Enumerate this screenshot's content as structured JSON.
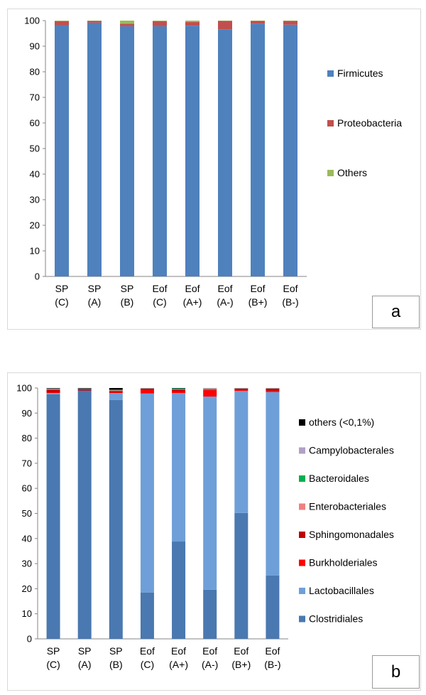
{
  "chart_data": [
    {
      "type": "bar",
      "stacked": true,
      "panel_label": "a",
      "categories": [
        [
          "SP",
          "(C)"
        ],
        [
          "SP",
          "(A)"
        ],
        [
          "SP",
          "(B)"
        ],
        [
          "Eof",
          "(C)"
        ],
        [
          "Eof",
          "(A+)"
        ],
        [
          "Eof",
          "(A-)"
        ],
        [
          "Eof",
          "(B+)"
        ],
        [
          "Eof",
          "(B-)"
        ]
      ],
      "ylim": [
        0,
        100
      ],
      "yticks": [
        0,
        10,
        20,
        30,
        40,
        50,
        60,
        70,
        80,
        90,
        100
      ],
      "legend_position": "right",
      "series": [
        {
          "name": "Firmicutes",
          "color": "#4f81bd",
          "values": [
            98.2,
            99.2,
            97.8,
            97.8,
            98.0,
            96.6,
            98.8,
            98.4
          ]
        },
        {
          "name": "Proteobacteria",
          "color": "#c0504d",
          "values": [
            1.6,
            0.7,
            1.0,
            2.0,
            1.5,
            3.3,
            1.1,
            1.5
          ]
        },
        {
          "name": "Others",
          "color": "#9bbb59",
          "values": [
            0.2,
            0.1,
            1.2,
            0.2,
            0.5,
            0.1,
            0.1,
            0.1
          ]
        }
      ]
    },
    {
      "type": "bar",
      "stacked": true,
      "panel_label": "b",
      "categories": [
        [
          "SP",
          "(C)"
        ],
        [
          "SP",
          "(A)"
        ],
        [
          "SP",
          "(B)"
        ],
        [
          "Eof",
          "(C)"
        ],
        [
          "Eof",
          "(A+)"
        ],
        [
          "Eof",
          "(A-)"
        ],
        [
          "Eof",
          "(B+)"
        ],
        [
          "Eof",
          "(B-)"
        ]
      ],
      "ylim": [
        0,
        100
      ],
      "yticks": [
        0,
        10,
        20,
        30,
        40,
        50,
        60,
        70,
        80,
        90,
        100
      ],
      "legend_position": "right",
      "series": [
        {
          "name": "Clostridiales",
          "color": "#4a78b0",
          "values": [
            97.5,
            99.0,
            95.2,
            18.5,
            38.8,
            19.6,
            50.2,
            25.3
          ]
        },
        {
          "name": "Lactobacillales",
          "color": "#6f9fd8",
          "values": [
            0.5,
            0.0,
            2.8,
            79.3,
            59.2,
            77.0,
            48.6,
            73.1
          ]
        },
        {
          "name": "Burkholderiales",
          "color": "#ff0000",
          "values": [
            0.3,
            0.0,
            0.3,
            1.5,
            0.6,
            2.5,
            0.4,
            0.6
          ]
        },
        {
          "name": "Sphingomonadales",
          "color": "#c00000",
          "values": [
            1.0,
            0.6,
            0.5,
            0.5,
            0.8,
            0.3,
            0.6,
            0.8
          ]
        },
        {
          "name": "Enterobacteriales",
          "color": "#f08080",
          "values": [
            0.4,
            0.1,
            0.3,
            0.1,
            0.1,
            0.5,
            0.1,
            0.1
          ]
        },
        {
          "name": "Bacteroidales",
          "color": "#00b050",
          "values": [
            0.1,
            0.1,
            0.1,
            0.05,
            0.4,
            0.05,
            0.05,
            0.05
          ]
        },
        {
          "name": "Campylobacterales",
          "color": "#b1a0c7",
          "values": [
            0.1,
            0.1,
            0.1,
            0.05,
            0.05,
            0.05,
            0.05,
            0.05
          ]
        },
        {
          "name": "others (<0,1%)",
          "color": "#000000",
          "values": [
            0.1,
            0.1,
            0.7,
            0.0,
            0.05,
            0.0,
            0.0,
            0.0
          ]
        }
      ],
      "legend_order": [
        "others (<0,1%)",
        "Campylobacterales",
        "Bacteroidales",
        "Enterobacteriales",
        "Sphingomonadales",
        "Burkholderiales",
        "Lactobacillales",
        "Clostridiales"
      ]
    }
  ]
}
